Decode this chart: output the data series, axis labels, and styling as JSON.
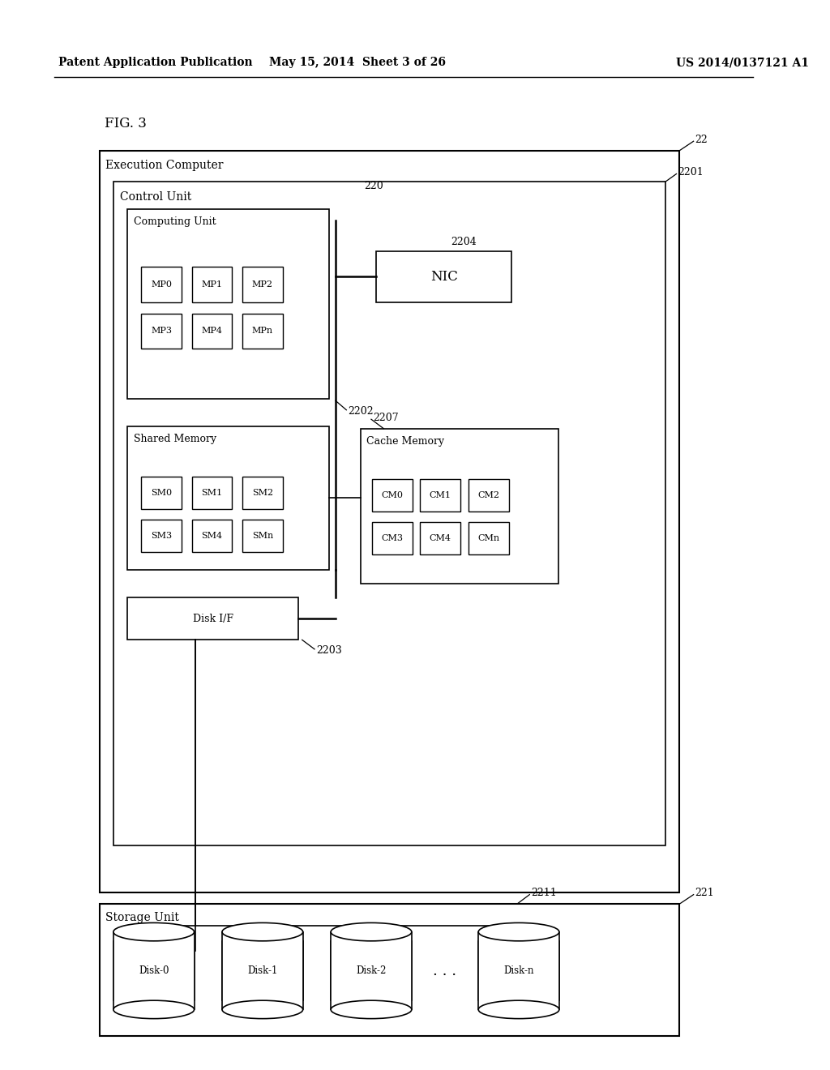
{
  "bg_color": "#ffffff",
  "header_left": "Patent Application Publication",
  "header_center": "May 15, 2014  Sheet 3 of 26",
  "header_right": "US 2014/0137121 A1",
  "fig_label": "FIG. 3",
  "label_22": "22",
  "label_220": "220",
  "label_2201": "2201",
  "label_2202": "2202",
  "label_2203": "2203",
  "label_2204": "2204",
  "label_2207": "2207",
  "label_2211": "2211",
  "label_221": "221",
  "exec_label": "Execution Computer",
  "control_label": "Control Unit",
  "computing_label": "Computing Unit",
  "nic_label": "NIC",
  "shared_label": "Shared Memory",
  "cache_label": "Cache Memory",
  "disk_if_label": "Disk I/F",
  "storage_label": "Storage Unit",
  "disk_labels": [
    "Disk-0",
    "Disk-1",
    "Disk-2",
    "Disk-n"
  ],
  "dots": ". . .",
  "mp_boxes": [
    {
      "label": "MP0",
      "col": 0,
      "row": 0
    },
    {
      "label": "MP1",
      "col": 1,
      "row": 0
    },
    {
      "label": "MP2",
      "col": 2,
      "row": 0
    },
    {
      "label": "MP3",
      "col": 0,
      "row": 1
    },
    {
      "label": "MP4",
      "col": 1,
      "row": 1
    },
    {
      "label": "MPn",
      "col": 2,
      "row": 1
    }
  ],
  "sm_boxes": [
    {
      "label": "SM0",
      "col": 0,
      "row": 0
    },
    {
      "label": "SM1",
      "col": 1,
      "row": 0
    },
    {
      "label": "SM2",
      "col": 2,
      "row": 0
    },
    {
      "label": "SM3",
      "col": 0,
      "row": 1
    },
    {
      "label": "SM4",
      "col": 1,
      "row": 1
    },
    {
      "label": "SMn",
      "col": 2,
      "row": 1
    }
  ],
  "cm_boxes": [
    {
      "label": "CM0",
      "col": 0,
      "row": 0
    },
    {
      "label": "CM1",
      "col": 1,
      "row": 0
    },
    {
      "label": "CM2",
      "col": 2,
      "row": 0
    },
    {
      "label": "CM3",
      "col": 0,
      "row": 1
    },
    {
      "label": "CM4",
      "col": 1,
      "row": 1
    },
    {
      "label": "CMn",
      "col": 2,
      "row": 1
    }
  ]
}
